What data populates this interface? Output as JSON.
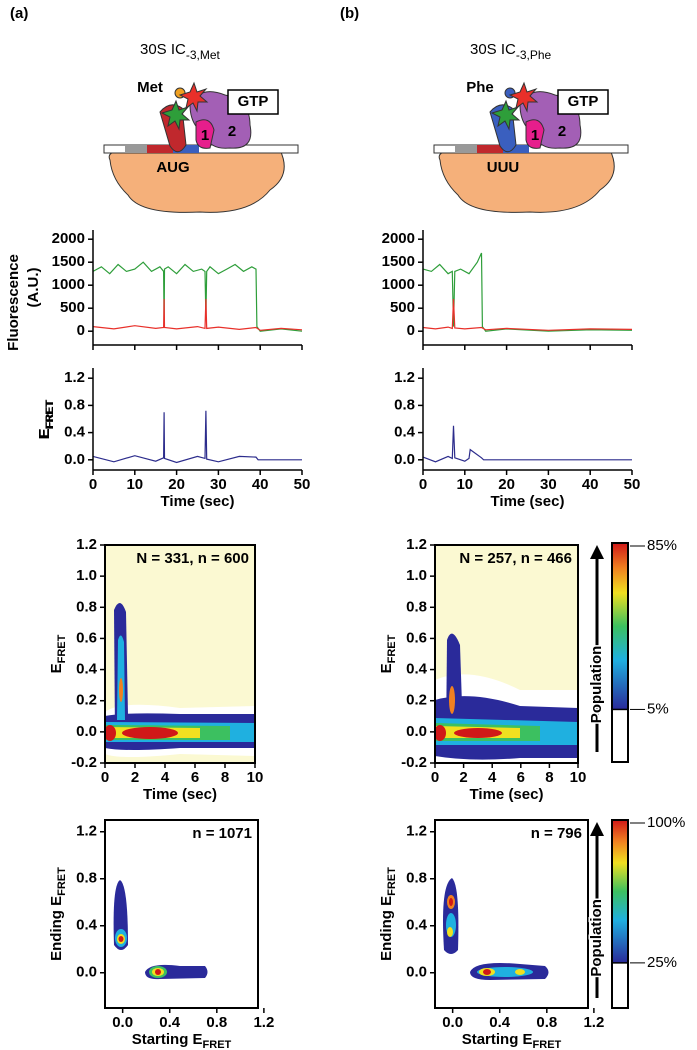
{
  "panels": [
    {
      "label": "(a)",
      "title": "30S IC",
      "title_sub": "-3,Met",
      "diagram": {
        "trna": "Met",
        "gtp": "GTP",
        "if1": "1",
        "if2": "2",
        "codon": "AUG"
      },
      "fluorescence": {
        "ylabel_line1": "Fluorescence",
        "ylabel_line2": "(A.U.)",
        "xlim": [
          0,
          50
        ],
        "ylim": [
          -300,
          2200
        ],
        "xticks": [
          0,
          10,
          20,
          30,
          40,
          50
        ],
        "yticks": [
          0,
          500,
          1000,
          1500,
          2000
        ],
        "series": [
          {
            "color": "#2e9e3a",
            "x": [
              0,
              2,
              4,
              6,
              8,
              10,
              12,
              14,
              16,
              16.9,
              17,
              17.1,
              18,
              20,
              22,
              24,
              26,
              26.8,
              27,
              27.2,
              28,
              30,
              32,
              34,
              36,
              38,
              39,
              39.2,
              40,
              45,
              50
            ],
            "values": [
              1300,
              1400,
              1250,
              1450,
              1300,
              1350,
              1500,
              1300,
              1400,
              1300,
              100,
              1350,
              1400,
              1250,
              1450,
              1300,
              1350,
              1300,
              300,
              1300,
              1400,
              1250,
              1350,
              1450,
              1300,
              1400,
              1350,
              100,
              0,
              50,
              0
            ]
          },
          {
            "color": "#e8302a",
            "x": [
              0,
              5,
              10,
              15,
              16.9,
              17,
              17.1,
              20,
              25,
              26.8,
              27,
              27.2,
              30,
              35,
              39,
              40,
              45,
              50
            ],
            "values": [
              100,
              50,
              120,
              60,
              80,
              700,
              80,
              50,
              100,
              60,
              700,
              60,
              90,
              40,
              80,
              20,
              60,
              30
            ]
          }
        ]
      },
      "efret": {
        "ylabel": "E",
        "ylabel_sub": "FRET",
        "xlabel": "Time (sec)",
        "xlim": [
          0,
          50
        ],
        "ylim": [
          -0.15,
          1.35
        ],
        "xticks": [
          0,
          10,
          20,
          30,
          40,
          50
        ],
        "yticks": [
          {
            "value": 0,
            "label": "0.0"
          },
          {
            "value": 0.4,
            "label": "0.4"
          },
          {
            "value": 0.8,
            "label": "0.8"
          },
          {
            "value": 1.2,
            "label": "1.2"
          }
        ],
        "series": [
          {
            "color": "#2c2c8c",
            "x": [
              0,
              5,
              10,
              15,
              16.9,
              17,
              17.1,
              20,
              25,
              26.8,
              27,
              27.2,
              30,
              35,
              39,
              39.5,
              50
            ],
            "values": [
              0.05,
              -0.03,
              0.06,
              -0.02,
              0.03,
              0.7,
              0.02,
              -0.04,
              0.05,
              0.02,
              0.72,
              0.01,
              -0.03,
              0.05,
              0.04,
              0,
              0
            ]
          }
        ]
      },
      "heatmap": {
        "annotation": "N = 331, n = 600",
        "ylabel": "E",
        "ylabel_sub": "FRET",
        "xlabel": "Time (sec)",
        "xlim": [
          0,
          10
        ],
        "ylim": [
          -0.2,
          1.2
        ],
        "xticks": [
          0,
          2,
          4,
          6,
          8,
          10
        ],
        "yticks": [
          {
            "value": -0.2,
            "label": "-0.2"
          },
          {
            "value": 0,
            "label": "0.0"
          },
          {
            "value": 0.2,
            "label": "0.2"
          },
          {
            "value": 0.4,
            "label": "0.4"
          },
          {
            "value": 0.6,
            "label": "0.6"
          },
          {
            "value": 0.8,
            "label": "0.8"
          },
          {
            "value": 1,
            "label": "1.0"
          },
          {
            "value": 1.2,
            "label": "1.2"
          }
        ]
      },
      "tdp": {
        "annotation": "n = 1071",
        "ylabel": "Ending E",
        "ylabel_sub": "FRET",
        "xlabel": "Starting E",
        "xlabel_sub": "FRET",
        "xlim": [
          -0.15,
          1.15
        ],
        "ylim": [
          -0.3,
          1.3
        ],
        "xticks": [
          {
            "value": 0,
            "label": "0.0"
          },
          {
            "value": 0.4,
            "label": "0.4"
          },
          {
            "value": 0.8,
            "label": "0.8"
          },
          {
            "value": 1.2,
            "label": "1.2"
          }
        ],
        "yticks": [
          {
            "value": 0,
            "label": "0.0"
          },
          {
            "value": 0.4,
            "label": "0.4"
          },
          {
            "value": 0.8,
            "label": "0.8"
          },
          {
            "value": 1.2,
            "label": "1.2"
          }
        ]
      }
    },
    {
      "label": "(b)",
      "title": "30S IC",
      "title_sub": "-3,Phe",
      "diagram": {
        "trna": "Phe",
        "gtp": "GTP",
        "if1": "1",
        "if2": "2",
        "codon": "UUU"
      },
      "fluorescence": {
        "xlim": [
          0,
          50
        ],
        "ylim": [
          -300,
          2200
        ],
        "xticks": [
          0,
          10,
          20,
          30,
          40,
          50
        ],
        "yticks": [
          0,
          500,
          1000,
          1500,
          2000
        ],
        "series": [
          {
            "color": "#2e9e3a",
            "x": [
              0,
              2,
              4,
              6,
              7,
              7.3,
              7.6,
              9,
              11,
              13,
              14,
              14.2,
              15,
              20,
              30,
              40,
              50
            ],
            "values": [
              1350,
              1300,
              1450,
              1250,
              1300,
              100,
              1300,
              1350,
              1250,
              1500,
              1700,
              100,
              0,
              50,
              0,
              30,
              20
            ]
          },
          {
            "color": "#e8302a",
            "x": [
              0,
              3,
              6,
              7,
              7.3,
              7.6,
              10,
              14,
              15,
              20,
              30,
              40,
              50
            ],
            "values": [
              80,
              50,
              90,
              60,
              700,
              70,
              50,
              80,
              30,
              60,
              20,
              50,
              40
            ]
          }
        ]
      },
      "efret": {
        "xlabel": "Time (sec)",
        "xlim": [
          0,
          50
        ],
        "ylim": [
          -0.15,
          1.35
        ],
        "xticks": [
          0,
          10,
          20,
          30,
          40,
          50
        ],
        "yticks": [
          {
            "value": 0,
            "label": "0.0"
          },
          {
            "value": 0.4,
            "label": "0.4"
          },
          {
            "value": 0.8,
            "label": "0.8"
          },
          {
            "value": 1.2,
            "label": "1.2"
          }
        ],
        "series": [
          {
            "color": "#2c2c8c",
            "x": [
              0,
              3,
              6,
              7,
              7.3,
              7.6,
              10,
              11,
              11.3,
              14,
              14.5,
              50
            ],
            "values": [
              0.04,
              -0.03,
              0.05,
              0.02,
              0.5,
              0.03,
              -0.02,
              0.02,
              0.15,
              0.03,
              0,
              0
            ]
          }
        ]
      },
      "heatmap": {
        "annotation": "N = 257, n = 466",
        "ylabel": "E",
        "ylabel_sub": "FRET",
        "xlabel": "Time (sec)",
        "xlim": [
          0,
          10
        ],
        "ylim": [
          -0.2,
          1.2
        ],
        "xticks": [
          0,
          2,
          4,
          6,
          8,
          10
        ],
        "yticks": [
          {
            "value": -0.2,
            "label": "-0.2"
          },
          {
            "value": 0,
            "label": "0.0"
          },
          {
            "value": 0.2,
            "label": "0.2"
          },
          {
            "value": 0.4,
            "label": "0.4"
          },
          {
            "value": 0.6,
            "label": "0.6"
          },
          {
            "value": 0.8,
            "label": "0.8"
          },
          {
            "value": 1,
            "label": "1.0"
          },
          {
            "value": 1.2,
            "label": "1.2"
          }
        ]
      },
      "tdp": {
        "annotation": "n = 796",
        "ylabel": "Ending E",
        "ylabel_sub": "FRET",
        "xlabel": "Starting E",
        "xlabel_sub": "FRET",
        "xlim": [
          -0.15,
          1.15
        ],
        "ylim": [
          -0.3,
          1.3
        ],
        "xticks": [
          {
            "value": 0,
            "label": "0.0"
          },
          {
            "value": 0.4,
            "label": "0.4"
          },
          {
            "value": 0.8,
            "label": "0.8"
          },
          {
            "value": 1.2,
            "label": "1.2"
          }
        ],
        "yticks": [
          {
            "value": 0,
            "label": "0.0"
          },
          {
            "value": 0.4,
            "label": "0.4"
          },
          {
            "value": 0.8,
            "label": "0.8"
          },
          {
            "value": 1.2,
            "label": "1.2"
          }
        ]
      }
    }
  ],
  "colorbars": [
    {
      "top": "85%",
      "bottom": "5%",
      "label": "Population"
    },
    {
      "top": "100%",
      "bottom": "25%",
      "label": "Population"
    }
  ]
}
